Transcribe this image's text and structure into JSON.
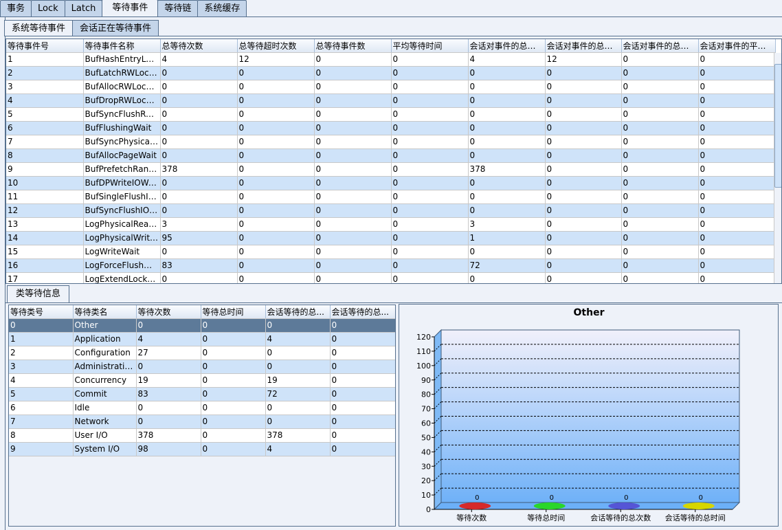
{
  "top_tabs": [
    "事务",
    "Lock",
    "Latch",
    "等待事件",
    "等待链",
    "系统缓存"
  ],
  "active_top_tab": 3,
  "sub_tabs": [
    "系统等待事件",
    "会话正在等待事件"
  ],
  "events_table": {
    "columns": [
      "等待事件号",
      "等待事件名称",
      "总等待次数",
      "总等待超时次数",
      "总等待事件数",
      "平均等待时间",
      "会话对事件的总等...",
      "会话对事件的总等...",
      "会话对事件的总等...",
      "会话对事件的平均..."
    ],
    "rows": [
      [
        "1",
        "BufHashEntryLoc...",
        "4",
        "12",
        "0",
        "0",
        "4",
        "12",
        "0",
        "0"
      ],
      [
        "2",
        "BufLatchRWLock...",
        "0",
        "0",
        "0",
        "0",
        "0",
        "0",
        "0",
        "0"
      ],
      [
        "3",
        "BufAllocRWLock...",
        "0",
        "0",
        "0",
        "0",
        "0",
        "0",
        "0",
        "0"
      ],
      [
        "4",
        "BufDropRWLock...",
        "0",
        "0",
        "0",
        "0",
        "0",
        "0",
        "0",
        "0"
      ],
      [
        "5",
        "BufSyncFlushRW...",
        "0",
        "0",
        "0",
        "0",
        "0",
        "0",
        "0",
        "0"
      ],
      [
        "6",
        "BufFlushingWait",
        "0",
        "0",
        "0",
        "0",
        "0",
        "0",
        "0",
        "0"
      ],
      [
        "7",
        "BufSyncPhysicalR...",
        "0",
        "0",
        "0",
        "0",
        "0",
        "0",
        "0",
        "0"
      ],
      [
        "8",
        "BufAllocPageWait",
        "0",
        "0",
        "0",
        "0",
        "0",
        "0",
        "0",
        "0"
      ],
      [
        "9",
        "BufPrefetchRange...",
        "378",
        "0",
        "0",
        "0",
        "378",
        "0",
        "0",
        "0"
      ],
      [
        "10",
        "BufDPWriteIOWait",
        "0",
        "0",
        "0",
        "0",
        "0",
        "0",
        "0",
        "0"
      ],
      [
        "11",
        "BufSingleFlushIO...",
        "0",
        "0",
        "0",
        "0",
        "0",
        "0",
        "0",
        "0"
      ],
      [
        "12",
        "BufSyncFlushIOW...",
        "0",
        "0",
        "0",
        "0",
        "0",
        "0",
        "0",
        "0"
      ],
      [
        "13",
        "LogPhysicalReadI...",
        "3",
        "0",
        "0",
        "0",
        "3",
        "0",
        "0",
        "0"
      ],
      [
        "14",
        "LogPhysicalWriteI...",
        "95",
        "0",
        "0",
        "0",
        "1",
        "0",
        "0",
        "0"
      ],
      [
        "15",
        "LogWriteWait",
        "0",
        "0",
        "0",
        "0",
        "0",
        "0",
        "0",
        "0"
      ],
      [
        "16",
        "LogForceFlushWait",
        "83",
        "0",
        "0",
        "0",
        "72",
        "0",
        "0",
        "0"
      ],
      [
        "17",
        "LogExtendLockWait",
        "0",
        "0",
        "0",
        "0",
        "0",
        "0",
        "0",
        "0"
      ]
    ]
  },
  "bottom_tab": "类等待信息",
  "class_table": {
    "columns": [
      "等待类号",
      "等待类名",
      "等待次数",
      "等待总时间",
      "会话等待的总...",
      "会话等待的总..."
    ],
    "selected_row": 0,
    "rows": [
      [
        "0",
        "Other",
        "0",
        "0",
        "0",
        "0"
      ],
      [
        "1",
        "Application",
        "4",
        "0",
        "4",
        "0"
      ],
      [
        "2",
        "Configuration",
        "27",
        "0",
        "0",
        "0"
      ],
      [
        "3",
        "Administrative",
        "0",
        "0",
        "0",
        "0"
      ],
      [
        "4",
        "Concurrency",
        "19",
        "0",
        "19",
        "0"
      ],
      [
        "5",
        "Commit",
        "83",
        "0",
        "72",
        "0"
      ],
      [
        "6",
        "Idle",
        "0",
        "0",
        "0",
        "0"
      ],
      [
        "7",
        "Network",
        "0",
        "0",
        "0",
        "0"
      ],
      [
        "8",
        "User I/O",
        "378",
        "0",
        "378",
        "0"
      ],
      [
        "9",
        "System I/O",
        "98",
        "0",
        "4",
        "0"
      ]
    ]
  },
  "chart_data": {
    "type": "bar",
    "title": "Other",
    "categories": [
      "等待次数",
      "等待总时间",
      "会话等待的总次数",
      "会话等待的总时间"
    ],
    "values": [
      0,
      0,
      0,
      0
    ],
    "data_labels": [
      "0",
      "0",
      "0",
      "0"
    ],
    "colors": [
      "#d62a2a",
      "#2ad62a",
      "#5555d6",
      "#d6d600"
    ],
    "ylim": [
      0,
      120
    ],
    "yticks": [
      0,
      10,
      20,
      30,
      40,
      50,
      60,
      70,
      80,
      90,
      100,
      110,
      120
    ],
    "grid": true,
    "legend": "none"
  }
}
